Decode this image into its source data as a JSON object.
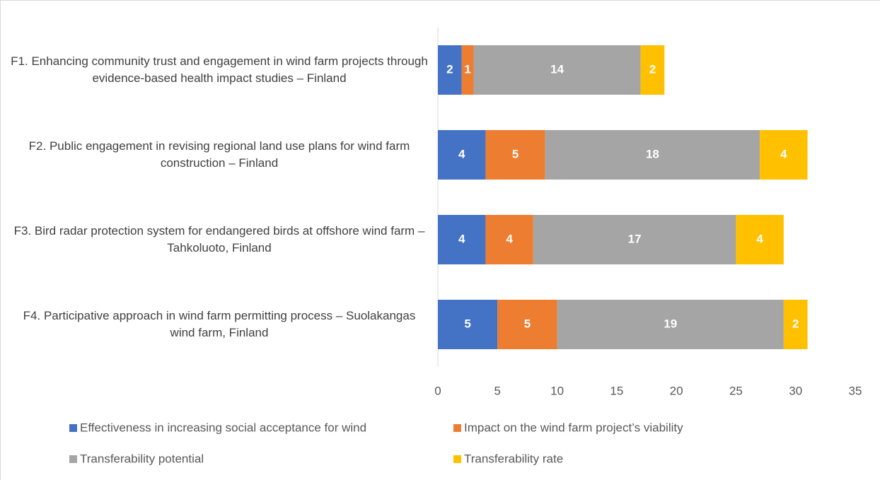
{
  "chart_data": {
    "type": "stacked_bar_horizontal",
    "categories": [
      "F1. Enhancing community trust and engagement in wind farm projects through evidence-based health impact studies – Finland",
      "F2. Public engagement in revising regional land use plans for wind farm construction – Finland",
      "F3. Bird radar protection system for endangered birds at offshore wind farm – Tahkoluoto, Finland",
      "F4. Participative approach in wind farm permitting process – Suolakangas wind farm, Finland"
    ],
    "series": [
      {
        "name": "Effectiveness in increasing social acceptance for wind",
        "color": "#4472c4",
        "values": [
          2,
          4,
          4,
          5
        ]
      },
      {
        "name": "Impact on the wind farm project’s viability",
        "color": "#ed7d31",
        "values": [
          1,
          5,
          4,
          5
        ]
      },
      {
        "name": "Transferability potential",
        "color": "#a5a5a5",
        "values": [
          14,
          18,
          17,
          19
        ]
      },
      {
        "name": "Transferability rate",
        "color": "#ffc000",
        "values": [
          2,
          4,
          4,
          2
        ]
      }
    ],
    "xlim": [
      0,
      35
    ],
    "xticks": [
      0,
      5,
      10,
      15,
      20,
      25,
      30,
      35
    ],
    "grid": false,
    "legend": "bottom"
  }
}
